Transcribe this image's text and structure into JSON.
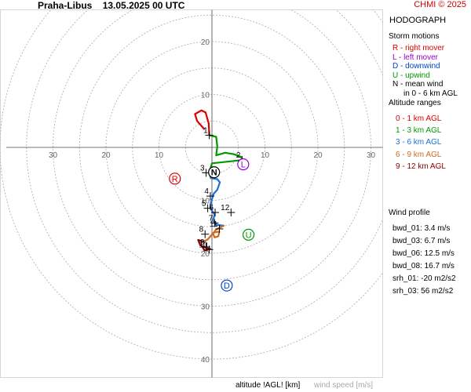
{
  "header": {
    "station": "Praha-Libus",
    "datetime": "13.05.2025 00 UTC",
    "copyright": "CHMI © 2025"
  },
  "panel": {
    "title": "HODOGRAPH",
    "storm_title": "Storm motions",
    "storm_items": [
      {
        "text": "R - right mover",
        "color": "#dd0000"
      },
      {
        "text": "L - left mover",
        "color": "#9900cc"
      },
      {
        "text": "D - downwind",
        "color": "#0044cc"
      },
      {
        "text": "U - upwind",
        "color": "#009900"
      },
      {
        "text": "N - mean wind",
        "color": "#000000"
      },
      {
        "text": "in 0 - 6 km AGL",
        "color": "#000000"
      }
    ],
    "range_title": "Altitude ranges",
    "ranges": [
      {
        "text": "0 - 1 km AGL",
        "color": "#dd0000"
      },
      {
        "text": "1 - 3 km AGL",
        "color": "#009900"
      },
      {
        "text": "3 - 6 km AGL",
        "color": "#1f6fd8"
      },
      {
        "text": "6 - 9 km AGL",
        "color": "#d2691e"
      },
      {
        "text": "9 - 12 km AGL",
        "color": "#8b0000"
      }
    ],
    "profile_title": "Wind profile",
    "profile": [
      "bwd_01: 3.4 m/s",
      "bwd_03: 6.7 m/s",
      "bwd_06: 12.5 m/s",
      "bwd_08: 16.7 m/s",
      "srh_01: -20 m2/s2",
      "srh_03: 56 m2/s2"
    ]
  },
  "footer": {
    "xlabel": "altitude !AGL! [km]",
    "xlabel2": "wind speed [m/s]"
  },
  "chart_data": {
    "type": "hodograph",
    "axis_unit": "m/s",
    "rings": [
      5,
      10,
      15,
      20,
      25,
      30,
      35,
      40
    ],
    "x_tick_labels": [
      -30,
      -20,
      -10,
      10,
      20,
      30
    ],
    "y_tick_labels": [
      20,
      10,
      10,
      20,
      30,
      40
    ],
    "y_tick_values": [
      20,
      10,
      -10,
      -20,
      -30,
      -40
    ],
    "series": [
      {
        "name": "0 - 1 km AGL",
        "color": "#dd0000",
        "points": [
          [
            -1.5,
            3.5
          ],
          [
            -2.8,
            5.0
          ],
          [
            -3.2,
            6.3
          ],
          [
            -2.0,
            7.0
          ],
          [
            -1.2,
            6.6
          ],
          [
            -0.6,
            4.5
          ],
          [
            -0.5,
            2.3
          ]
        ]
      },
      {
        "name": "1 - 3 km AGL",
        "color": "#009900",
        "points": [
          [
            -0.5,
            2.3
          ],
          [
            0.8,
            2.0
          ],
          [
            1.0,
            0.2
          ],
          [
            0.8,
            -1.5
          ],
          [
            2.5,
            -1.0
          ],
          [
            4.2,
            -1.3
          ],
          [
            5.5,
            -1.8
          ],
          [
            5.7,
            -2.4
          ],
          [
            0.0,
            -3.0
          ],
          [
            -0.5,
            -4.8
          ],
          [
            -0.2,
            -5.8
          ]
        ]
      },
      {
        "name": "3 - 6 km AGL",
        "color": "#1f6fd8",
        "points": [
          [
            -0.2,
            -5.8
          ],
          [
            1.0,
            -6.0
          ],
          [
            1.5,
            -6.6
          ],
          [
            1.0,
            -8.0
          ],
          [
            0.3,
            -8.8
          ],
          [
            -0.3,
            -10.8
          ],
          [
            -0.3,
            -11.5
          ],
          [
            0.5,
            -12.7
          ],
          [
            0.2,
            -13.8
          ],
          [
            0.8,
            -14.6
          ],
          [
            2.2,
            -14.8
          ]
        ]
      },
      {
        "name": "6 - 9 km AGL",
        "color": "#d2691e",
        "points": [
          [
            2.2,
            -14.8
          ],
          [
            0.8,
            -15.5
          ],
          [
            0.2,
            -16.3
          ],
          [
            0.5,
            -17.0
          ],
          [
            1.2,
            -16.8
          ],
          [
            1.4,
            -15.9
          ],
          [
            0.3,
            -16.1
          ],
          [
            -0.8,
            -17.4
          ],
          [
            -1.6,
            -17.8
          ]
        ]
      },
      {
        "name": "9 - 12 km AGL",
        "color": "#8b0000",
        "points": [
          [
            -1.6,
            -17.8
          ],
          [
            -2.6,
            -17.5
          ],
          [
            -2.2,
            -18.5
          ],
          [
            -1.0,
            -19.0
          ],
          [
            -0.3,
            -19.2
          ],
          [
            -1.4,
            -19.5
          ],
          [
            -1.8,
            -18.8
          ]
        ]
      }
    ],
    "height_marks": [
      {
        "label": "1",
        "u": -0.5,
        "v": 2.3
      },
      {
        "label": "2",
        "u": 5.7,
        "v": -2.4
      },
      {
        "label": "3",
        "u": -1.1,
        "v": -4.8
      },
      {
        "label": "4",
        "u": -0.3,
        "v": -9.2
      },
      {
        "label": "5",
        "u": -0.8,
        "v": -11.5
      },
      {
        "label": "6",
        "u": 0.6,
        "v": -12.3
      },
      {
        "label": "7",
        "u": 0.5,
        "v": -14.3
      },
      {
        "label": "8",
        "u": -1.3,
        "v": -16.4
      },
      {
        "label": "9",
        "u": -1.1,
        "v": -18.8
      },
      {
        "label": "10",
        "u": -0.5,
        "v": -19.3
      },
      {
        "label": "11",
        "u": 1.4,
        "v": -15.4
      },
      {
        "label": "12",
        "u": 3.6,
        "v": -12.3
      }
    ],
    "storm_motions": [
      {
        "label": "R",
        "u": -7.0,
        "v": -5.9,
        "color": "#dd0000"
      },
      {
        "label": "L",
        "u": 5.9,
        "v": -3.2,
        "color": "#9900cc"
      },
      {
        "label": "D",
        "u": 2.8,
        "v": -26.1,
        "color": "#0044cc"
      },
      {
        "label": "U",
        "u": 6.9,
        "v": -16.5,
        "color": "#009900"
      },
      {
        "label": "N",
        "u": 0.4,
        "v": -4.7,
        "color": "#000000"
      }
    ]
  }
}
